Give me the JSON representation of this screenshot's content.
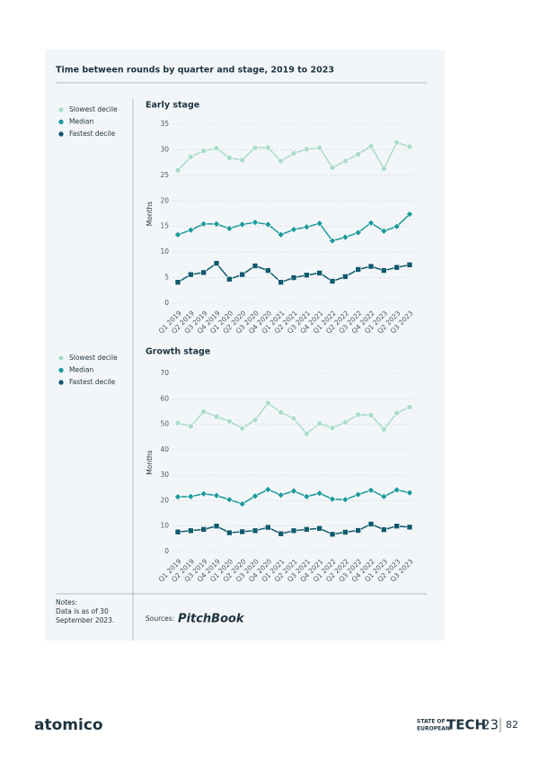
{
  "header": {
    "title": "Time between rounds by quarter and stage, 2019 to 2023"
  },
  "chart_data": [
    {
      "type": "line",
      "title": "Early stage",
      "y_label": "Months",
      "categories": [
        "Q1 2019",
        "Q2 2019",
        "Q3 2019",
        "Q4 2019",
        "Q1 2020",
        "Q2 2020",
        "Q3 2020",
        "Q4 2020",
        "Q1 2021",
        "Q2 2021",
        "Q3 2021",
        "Q4 2021",
        "Q1 2022",
        "Q2 2022",
        "Q3 2022",
        "Q4 2022",
        "Q1 2023",
        "Q2 2023",
        "Q3 2023"
      ],
      "series": [
        {
          "name": "Slowest decile",
          "color": "#a9dcc9",
          "marker": "circle",
          "values": [
            26,
            28.6,
            29.8,
            30.3,
            28.4,
            28,
            30.4,
            30.4,
            27.8,
            29.3,
            30.1,
            30.4,
            26.5,
            27.8,
            29.1,
            30.7,
            26.3,
            31.4,
            30.6
          ]
        },
        {
          "name": "Median",
          "color": "#1b9a9b",
          "marker": "diamond",
          "values": [
            13.4,
            14.3,
            15.5,
            15.5,
            14.6,
            15.4,
            15.8,
            15.4,
            13.4,
            14.4,
            14.9,
            15.6,
            12.2,
            12.9,
            13.8,
            15.7,
            14.1,
            15,
            17.4
          ]
        },
        {
          "name": "Fastest decile",
          "color": "#0f5a6e",
          "marker": "square",
          "values": [
            4.1,
            5.6,
            6,
            7.8,
            4.7,
            5.6,
            7.3,
            6.4,
            4.1,
            5,
            5.5,
            5.9,
            4.3,
            5.2,
            6.6,
            7.2,
            6.4,
            7,
            7.5
          ]
        }
      ],
      "ylim": [
        0,
        35
      ],
      "yticks": [
        0,
        5,
        10,
        15,
        20,
        25,
        30,
        35
      ],
      "grid": true
    },
    {
      "type": "line",
      "title": "Growth stage",
      "y_label": "Months",
      "categories": [
        "Q1 2019",
        "Q2 2019",
        "Q3 2019",
        "Q4 2019",
        "Q1 2020",
        "Q2 2020",
        "Q3 2020",
        "Q4 2020",
        "Q1 2021",
        "Q2 2021",
        "Q3 2021",
        "Q4 2021",
        "Q1 2022",
        "Q2 2022",
        "Q3 2022",
        "Q4 2022",
        "Q1 2023",
        "Q2 2023",
        "Q3 2023"
      ],
      "series": [
        {
          "name": "Slowest decile",
          "color": "#a9dcc9",
          "marker": "circle",
          "values": [
            50.5,
            49.2,
            55,
            53,
            51.2,
            48.4,
            51.7,
            58.3,
            54.7,
            52.3,
            46.3,
            50.3,
            48.6,
            50.8,
            53.8,
            53.6,
            48,
            54.4,
            56.8
          ]
        },
        {
          "name": "Median",
          "color": "#1b9a9b",
          "marker": "diamond",
          "values": [
            21.5,
            21.6,
            22.7,
            22,
            20.4,
            18.7,
            21.8,
            24.4,
            22.2,
            23.8,
            21.6,
            22.9,
            20.6,
            20.4,
            22.4,
            24.1,
            21.6,
            24.2,
            23.1
          ]
        },
        {
          "name": "Fastest decile",
          "color": "#0f5a6e",
          "marker": "square",
          "values": [
            7.7,
            8.2,
            8.7,
            10,
            7.4,
            7.8,
            8.2,
            9.5,
            7,
            8.2,
            8.7,
            9.1,
            6.8,
            7.6,
            8.3,
            10.8,
            8.6,
            10,
            9.6
          ]
        }
      ],
      "ylim": [
        0,
        70
      ],
      "yticks": [
        0,
        10,
        20,
        30,
        40,
        50,
        60,
        70
      ],
      "grid": true
    }
  ],
  "notes": {
    "label": "Notes:",
    "lines": [
      "Data is as of 30",
      "September 2023."
    ]
  },
  "sources": {
    "label": "Sources:",
    "name": "PitchBook"
  },
  "footer": {
    "logo": "atomico",
    "brand_top": "STATE OF",
    "brand_bottom": "EUROPEAN",
    "brand_word": "TECH",
    "brand_year": "23",
    "page_number": "82"
  }
}
